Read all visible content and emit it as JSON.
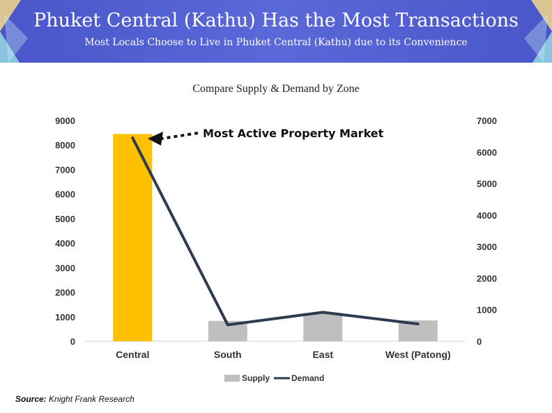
{
  "header": {
    "title": "Phuket Central (Kathu) Has the Most Transactions",
    "subtitle": "Most Locals Choose to Live in Phuket Central (Kathu) due to its Convenience"
  },
  "colors": {
    "banner": "#4a56c9",
    "supply_first": "#FFC000",
    "supply": "#BFBFBF",
    "demand": "#2E3A4F"
  },
  "chart_data": {
    "type": "bar",
    "title": "Compare Supply & Demand by Zone",
    "categories": [
      "Central",
      "South",
      "East",
      "West (Patong)"
    ],
    "series": [
      {
        "name": "Supply",
        "type": "bar",
        "axis": "left",
        "values": [
          8450,
          830,
          1150,
          850
        ]
      },
      {
        "name": "Demand",
        "type": "line",
        "axis": "right",
        "values": [
          6450,
          520,
          920,
          550
        ]
      }
    ],
    "y_left": {
      "min": 0,
      "max": 9000,
      "step": 1000,
      "ticks": [
        "0",
        "1000",
        "2000",
        "3000",
        "4000",
        "5000",
        "6000",
        "7000",
        "8000",
        "9000"
      ]
    },
    "y_right": {
      "min": 0,
      "max": 7000,
      "step": 1000,
      "ticks": [
        "0",
        "1000",
        "2000",
        "3000",
        "4000",
        "5000",
        "6000",
        "7000"
      ]
    },
    "annotation": "Most Active Property Market",
    "legend": {
      "position": "bottom",
      "entries": [
        "Supply",
        "Demand"
      ]
    },
    "grid": false
  },
  "source": {
    "label": "Source:",
    "text": "Knight Frank Research"
  }
}
